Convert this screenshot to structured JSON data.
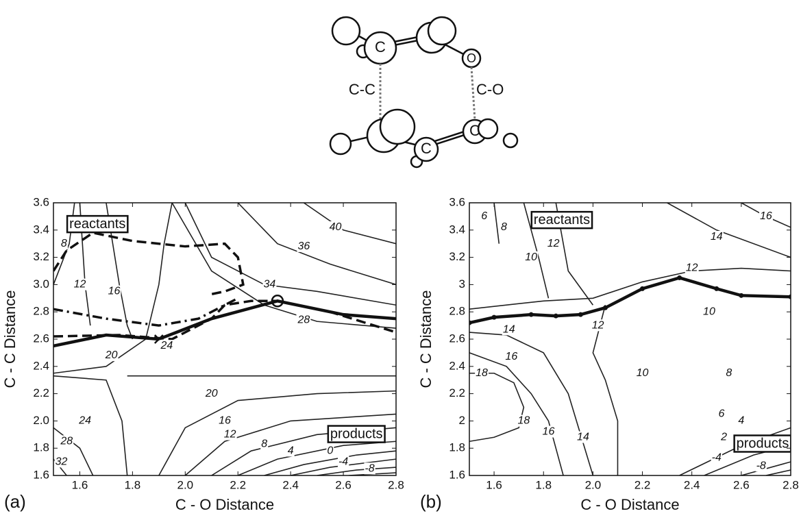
{
  "molecule": {
    "atom_labels": [
      "C",
      "O",
      "C",
      "C"
    ],
    "bond_labels": [
      "C-C",
      "C-O"
    ]
  },
  "chart_data": [
    {
      "type": "contour",
      "panel_label": "(a)",
      "xlabel": "C - O Distance",
      "ylabel": "C - C  Distance",
      "xlim": [
        1.5,
        2.8
      ],
      "ylim": [
        1.6,
        3.6
      ],
      "xticks": [
        1.6,
        1.8,
        {
          "value": 2,
          "label": "2.0"
        },
        2.2,
        2.4,
        2.6,
        2.8
      ],
      "yticks": [
        1.6,
        1.8,
        {
          "value": 2,
          "label": "2.0"
        },
        2.2,
        2.4,
        2.6,
        2.8,
        {
          "value": 3,
          "label": "3.0"
        },
        3.2,
        3.4,
        3.6
      ],
      "contours": [
        {
          "level": 40,
          "x": [
            2.45,
            2.6,
            2.8
          ],
          "y": [
            3.6,
            3.4,
            3.3
          ]
        },
        {
          "level": 36,
          "x": [
            2.2,
            2.35,
            2.55,
            2.8
          ],
          "y": [
            3.6,
            3.3,
            3.15,
            3.0
          ]
        },
        {
          "level": 34,
          "x": [
            2.0,
            2.1,
            2.3,
            2.5,
            2.8
          ],
          "y": [
            3.6,
            3.2,
            3.0,
            2.95,
            2.85
          ]
        },
        {
          "level": 28,
          "x": [
            1.95,
            2.1,
            2.3,
            2.5,
            2.8
          ],
          "y": [
            3.6,
            3.1,
            2.85,
            2.73,
            2.68
          ]
        },
        {
          "level": 20,
          "x": [
            1.5,
            1.7,
            1.85,
            1.9,
            1.92,
            1.95
          ],
          "y": [
            2.35,
            2.4,
            2.6,
            3.0,
            3.3,
            3.6
          ]
        },
        {
          "level": 16,
          "x": [
            1.7,
            1.75,
            1.78,
            1.8
          ],
          "y": [
            3.6,
            3.0,
            2.7,
            2.6
          ]
        },
        {
          "level": 12,
          "x": [
            1.6,
            1.62,
            1.64
          ],
          "y": [
            3.6,
            3.0,
            2.7
          ]
        },
        {
          "level": 8,
          "x": [
            1.5,
            1.56,
            1.58
          ],
          "y": [
            3.0,
            3.3,
            3.6
          ]
        },
        {
          "level": 24,
          "x": [
            1.78,
            2.8
          ],
          "y": [
            2.33,
            2.33
          ]
        },
        {
          "level": 24,
          "x": [
            1.5,
            1.7,
            1.76,
            1.78
          ],
          "y": [
            2.33,
            2.3,
            2.0,
            1.6
          ]
        },
        {
          "level": 20,
          "x": [
            1.9,
            2.0,
            2.2,
            2.5,
            2.8
          ],
          "y": [
            1.6,
            1.95,
            2.15,
            2.2,
            2.22
          ]
        },
        {
          "level": 16,
          "x": [
            2.0,
            2.15,
            2.4,
            2.8
          ],
          "y": [
            1.6,
            1.85,
            2.0,
            2.05
          ]
        },
        {
          "level": 12,
          "x": [
            2.1,
            2.25,
            2.5,
            2.8
          ],
          "y": [
            1.6,
            1.78,
            1.9,
            1.95
          ]
        },
        {
          "level": 8,
          "x": [
            2.2,
            2.35,
            2.6,
            2.8
          ],
          "y": [
            1.6,
            1.72,
            1.82,
            1.85
          ]
        },
        {
          "level": 4,
          "x": [
            2.3,
            2.45,
            2.65,
            2.8
          ],
          "y": [
            1.6,
            1.68,
            1.75,
            1.78
          ]
        },
        {
          "level": 0,
          "x": [
            2.4,
            2.55,
            2.8
          ],
          "y": [
            1.6,
            1.66,
            1.72
          ]
        },
        {
          "level": -4,
          "x": [
            2.5,
            2.65,
            2.8
          ],
          "y": [
            1.6,
            1.64,
            1.66
          ]
        },
        {
          "level": -8,
          "x": [
            2.62,
            2.8
          ],
          "y": [
            1.6,
            1.62
          ]
        },
        {
          "level": 28,
          "x": [
            1.5,
            1.6,
            1.65
          ],
          "y": [
            1.95,
            1.8,
            1.6
          ]
        },
        {
          "level": 32,
          "x": [
            1.5,
            1.55
          ],
          "y": [
            1.72,
            1.6
          ]
        }
      ],
      "contour_labels": [
        {
          "level": 8,
          "x": 1.54,
          "y": 3.3
        },
        {
          "level": 12,
          "x": 1.6,
          "y": 3.0
        },
        {
          "level": 16,
          "x": 1.73,
          "y": 2.95
        },
        {
          "level": 20,
          "x": 1.72,
          "y": 2.48
        },
        {
          "level": 24,
          "x": 1.93,
          "y": 2.55
        },
        {
          "level": 28,
          "x": 2.45,
          "y": 2.74
        },
        {
          "level": 34,
          "x": 2.32,
          "y": 3.0
        },
        {
          "level": 36,
          "x": 2.45,
          "y": 3.28
        },
        {
          "level": 40,
          "x": 2.57,
          "y": 3.42
        },
        {
          "level": 20,
          "x": 2.1,
          "y": 2.2
        },
        {
          "level": 16,
          "x": 2.15,
          "y": 2.0
        },
        {
          "level": 12,
          "x": 2.17,
          "y": 1.9
        },
        {
          "level": 8,
          "x": 2.3,
          "y": 1.83
        },
        {
          "level": 4,
          "x": 2.4,
          "y": 1.78
        },
        {
          "level": 0,
          "x": 2.55,
          "y": 1.78
        },
        {
          "level": -4,
          "x": 2.6,
          "y": 1.7
        },
        {
          "level": -8,
          "x": 2.7,
          "y": 1.65
        },
        {
          "level": 24,
          "x": 1.62,
          "y": 2.0
        },
        {
          "level": 28,
          "x": 1.55,
          "y": 1.85
        },
        {
          "level": 32,
          "x": 1.53,
          "y": 1.7
        }
      ],
      "paths": [
        {
          "dash": "solid",
          "x": [
            1.5,
            1.7,
            1.9,
            2.1,
            2.35,
            2.6,
            2.8
          ],
          "y": [
            2.55,
            2.63,
            2.6,
            2.75,
            2.88,
            2.78,
            2.75
          ]
        },
        {
          "dash": "dashed",
          "x": [
            1.5,
            1.75,
            1.95,
            2.1,
            2.15,
            2.25,
            2.35,
            2.55,
            2.8
          ],
          "y": [
            2.62,
            2.63,
            2.6,
            2.75,
            2.85,
            2.88,
            2.88,
            2.8,
            2.65
          ]
        },
        {
          "dash": "dashdot",
          "x": [
            1.5,
            1.7,
            1.9,
            2.05,
            2.2
          ],
          "y": [
            2.82,
            2.75,
            2.7,
            2.75,
            2.9
          ]
        },
        {
          "dash": "dashed",
          "x": [
            1.5,
            1.55,
            1.65,
            1.8,
            2.0,
            2.15,
            2.2,
            2.22,
            2.15,
            2.1
          ],
          "y": [
            3.1,
            3.25,
            3.38,
            3.32,
            3.28,
            3.3,
            3.2,
            3.0,
            2.95,
            2.93
          ]
        }
      ],
      "markers": [
        {
          "symbol": "x",
          "x": 1.9,
          "y": 2.6
        },
        {
          "symbol": "o",
          "x": 2.35,
          "y": 2.88
        }
      ],
      "boxes": [
        {
          "text": "reactants",
          "x": 1.56,
          "y": 3.44
        },
        {
          "text": "products",
          "x": 2.55,
          "y": 1.9
        }
      ]
    },
    {
      "type": "contour",
      "panel_label": "(b)",
      "xlabel": "C - O Distance",
      "ylabel": "C - C  Distance",
      "xlim": [
        1.5,
        2.8
      ],
      "ylim": [
        1.6,
        3.6
      ],
      "xticks": [
        1.6,
        1.8,
        {
          "value": 2,
          "label": "2.0"
        },
        2.2,
        2.4,
        2.6,
        2.8
      ],
      "yticks": [
        1.6,
        1.8,
        2,
        2.2,
        2.4,
        2.6,
        2.8,
        3,
        3.2,
        3.4,
        3.6
      ],
      "contours": [
        {
          "level": 16,
          "x": [
            2.6,
            2.7,
            2.8
          ],
          "y": [
            3.6,
            3.5,
            3.42
          ]
        },
        {
          "level": 14,
          "x": [
            2.3,
            2.5,
            2.8
          ],
          "y": [
            3.6,
            3.4,
            3.2
          ]
        },
        {
          "level": 12,
          "x": [
            1.85,
            1.9,
            2.0
          ],
          "y": [
            3.6,
            3.1,
            2.85
          ]
        },
        {
          "level": 12,
          "x": [
            1.5,
            1.8,
            2.0,
            2.2,
            2.4,
            2.6,
            2.8
          ],
          "y": [
            2.82,
            2.88,
            2.9,
            3.02,
            3.1,
            3.12,
            3.1
          ]
        },
        {
          "level": 10,
          "x": [
            1.72,
            1.78,
            1.82
          ],
          "y": [
            3.6,
            3.2,
            2.9
          ]
        },
        {
          "level": 8,
          "x": [
            1.6,
            1.62
          ],
          "y": [
            3.6,
            3.3
          ]
        },
        {
          "level": 14,
          "x": [
            1.5,
            1.65,
            1.8,
            1.9,
            2.0
          ],
          "y": [
            2.65,
            2.63,
            2.5,
            2.2,
            1.6
          ]
        },
        {
          "level": 16,
          "x": [
            1.5,
            1.65,
            1.75,
            1.82,
            1.85,
            1.88
          ],
          "y": [
            2.5,
            2.4,
            2.2,
            2.0,
            1.8,
            1.6
          ]
        },
        {
          "level": 18,
          "x": [
            1.5,
            1.6,
            1.68,
            1.72,
            1.7,
            1.6,
            1.5
          ],
          "y": [
            2.35,
            2.35,
            2.28,
            2.1,
            1.95,
            1.88,
            1.85
          ]
        },
        {
          "level": 12,
          "x": [
            2.05,
            2.0,
            2.05,
            2.1,
            2.1
          ],
          "y": [
            2.85,
            2.5,
            2.3,
            2.0,
            1.6
          ]
        },
        {
          "level": 4,
          "x": [
            2.35,
            2.6,
            2.8
          ],
          "y": [
            1.6,
            1.82,
            1.95
          ]
        },
        {
          "level": 2,
          "x": [
            2.45,
            2.65,
            2.8
          ],
          "y": [
            1.6,
            1.75,
            1.82
          ]
        },
        {
          "level": -4,
          "x": [
            2.6,
            2.8
          ],
          "y": [
            1.6,
            1.7
          ]
        },
        {
          "level": -8,
          "x": [
            2.7,
            2.8
          ],
          "y": [
            1.6,
            1.64
          ]
        }
      ],
      "contour_labels": [
        {
          "level": 6,
          "x": 1.56,
          "y": 3.5
        },
        {
          "level": 8,
          "x": 1.64,
          "y": 3.42
        },
        {
          "level": 10,
          "x": 1.75,
          "y": 3.2
        },
        {
          "level": 12,
          "x": 1.84,
          "y": 3.3
        },
        {
          "level": 14,
          "x": 2.5,
          "y": 3.35
        },
        {
          "level": 16,
          "x": 2.7,
          "y": 3.5
        },
        {
          "level": 12,
          "x": 2.4,
          "y": 3.12
        },
        {
          "level": 10,
          "x": 2.47,
          "y": 2.8
        },
        {
          "level": 14,
          "x": 1.66,
          "y": 2.67
        },
        {
          "level": 16,
          "x": 1.67,
          "y": 2.47
        },
        {
          "level": 18,
          "x": 1.55,
          "y": 2.35
        },
        {
          "level": 18,
          "x": 1.72,
          "y": 2.0
        },
        {
          "level": 16,
          "x": 1.82,
          "y": 1.92
        },
        {
          "level": 14,
          "x": 1.96,
          "y": 1.88
        },
        {
          "level": 12,
          "x": 2.02,
          "y": 2.7
        },
        {
          "level": 10,
          "x": 2.2,
          "y": 2.35
        },
        {
          "level": 8,
          "x": 2.55,
          "y": 2.35
        },
        {
          "level": 6,
          "x": 2.52,
          "y": 2.05
        },
        {
          "level": 4,
          "x": 2.6,
          "y": 2.0
        },
        {
          "level": 2,
          "x": 2.53,
          "y": 1.88
        },
        {
          "level": -4,
          "x": 2.5,
          "y": 1.73
        },
        {
          "level": -8,
          "x": 2.68,
          "y": 1.67
        }
      ],
      "paths": [
        {
          "dash": "solid",
          "x": [
            1.5,
            1.6,
            1.75,
            1.85,
            1.95,
            2.05,
            2.2,
            2.35,
            2.5,
            2.6,
            2.8
          ],
          "y": [
            2.72,
            2.76,
            2.78,
            2.77,
            2.78,
            2.83,
            2.97,
            3.05,
            2.97,
            2.92,
            2.91
          ]
        }
      ],
      "markers": [],
      "boxes": [
        {
          "text": "reactants",
          "x": 1.76,
          "y": 3.47
        },
        {
          "text": "products",
          "x": 2.58,
          "y": 1.83
        }
      ]
    }
  ]
}
